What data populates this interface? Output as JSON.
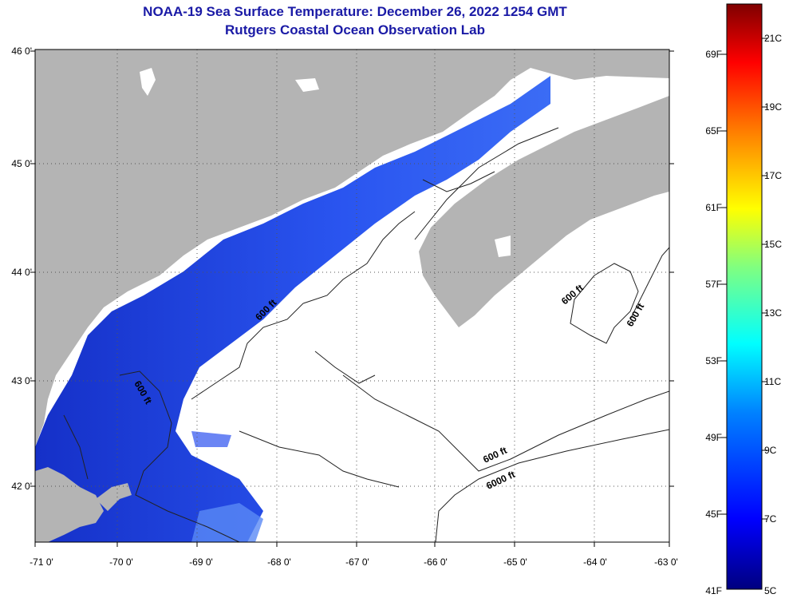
{
  "header": {
    "title": "NOAA-19 Sea Surface Temperature:  December 26, 2022 1254 GMT",
    "subtitle": "Rutgers Coastal Ocean Observation Lab"
  },
  "axes": {
    "lat_ticks": [
      "46 0'",
      "45 0'",
      "44 0'",
      "43 0'",
      "42 0'"
    ],
    "lon_ticks": [
      "-71 0'",
      "-70 0'",
      "-69 0'",
      "-68 0'",
      "-67 0'",
      "-66 0'",
      "-65 0'",
      "-64 0'",
      "-63 0'"
    ],
    "lat_range": [
      41.5,
      46
    ],
    "lon_range": [
      -71,
      -63
    ]
  },
  "contours": {
    "labels": [
      "600 ft",
      "600 ft",
      "600 ft",
      "600 ft",
      "600 ft",
      "6000 ft"
    ]
  },
  "colorbar": {
    "fahrenheit": [
      "69F",
      "65F",
      "61F",
      "57F",
      "53F",
      "49F",
      "45F",
      "41F"
    ],
    "celsius": [
      "21C",
      "19C",
      "17C",
      "15C",
      "13C",
      "11C",
      "9C",
      "7C",
      "5C"
    ],
    "colors": [
      "#00007f",
      "#0000ff",
      "#0080ff",
      "#00ffff",
      "#80ff80",
      "#ffff00",
      "#ff8000",
      "#ff0000",
      "#7f0000"
    ]
  },
  "colors": {
    "land": "#b4b4b4",
    "cold_water": "#1e3cdc",
    "title": "#1a1aa6"
  }
}
